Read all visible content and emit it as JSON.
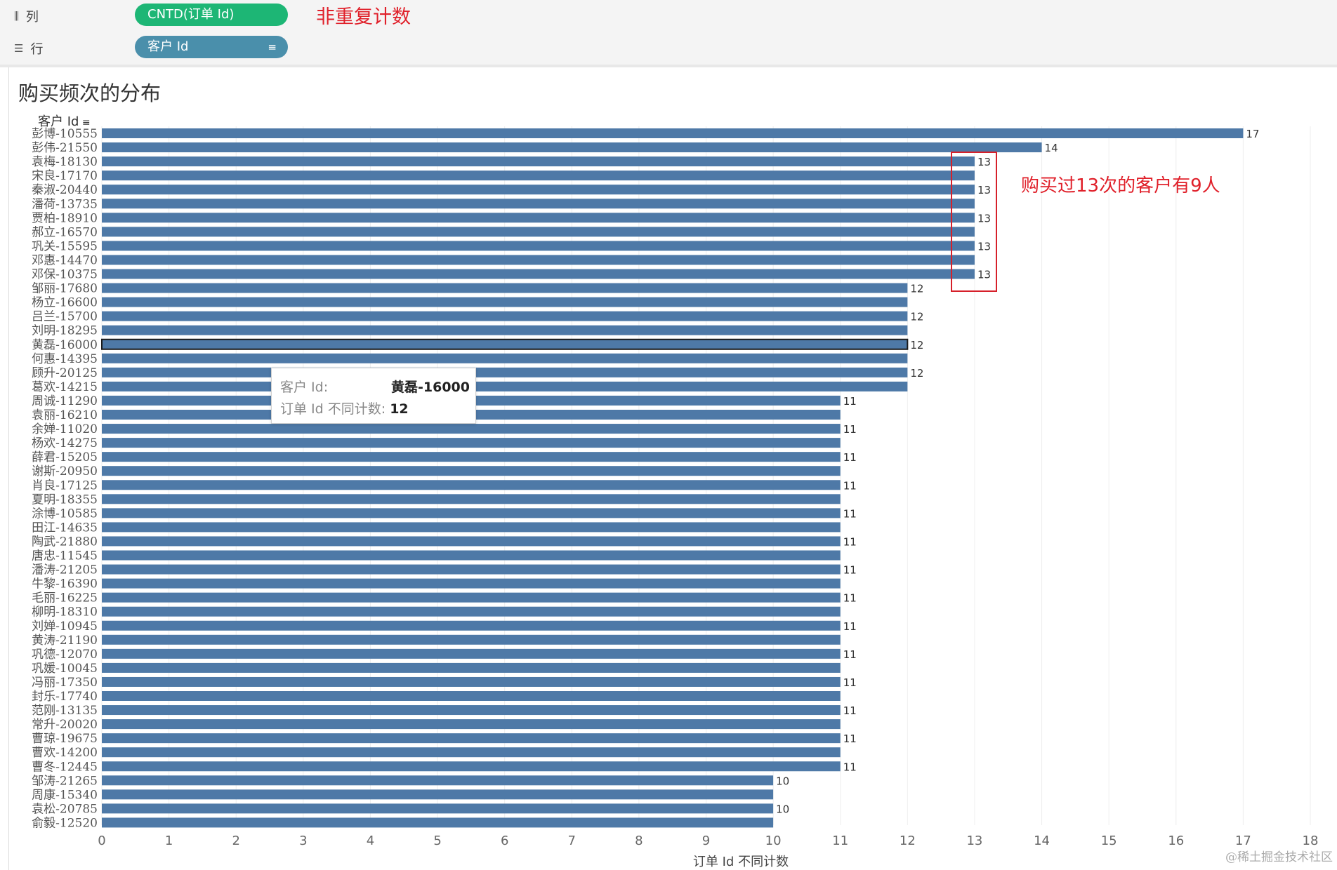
{
  "shelves": {
    "columns": {
      "label": "列",
      "pill": "CNTD(订单 Id)",
      "annotation": "非重复计数"
    },
    "rows": {
      "label": "行",
      "pill": "客户 Id"
    }
  },
  "title": "购买频次的分布",
  "axis_header": "客户 Id",
  "annotation_13": "购买过13次的客户有9人",
  "tooltip": {
    "label_customer": "客户 Id:",
    "value_customer": "黄磊-16000",
    "label_count": "订单 Id 不同计数:",
    "value_count": "12"
  },
  "watermark": "@稀土掘金技术社区",
  "colors": {
    "bar": "#4e79a7",
    "green_pill": "#1db675",
    "blue_pill": "#4a8fab",
    "annotation": "#e0202a"
  },
  "chart_data": {
    "type": "bar",
    "orientation": "horizontal",
    "title": "购买频次的分布",
    "xlabel": "订单 Id 不同计数",
    "ylabel": "客户 Id",
    "xlim": [
      0,
      18
    ],
    "x_ticks": [
      "0",
      "1",
      "2",
      "3",
      "4",
      "5",
      "6",
      "7",
      "8",
      "9",
      "10",
      "11",
      "12",
      "13",
      "14",
      "15",
      "16",
      "17",
      "18"
    ],
    "highlighted": "黄磊-16000",
    "categories": [
      "彭博-10555",
      "彭伟-21550",
      "袁梅-18130",
      "宋良-17170",
      "秦淑-20440",
      "潘荷-13735",
      "贾柏-18910",
      "郝立-16570",
      "巩关-15595",
      "邓惠-14470",
      "邓保-10375",
      "邹丽-17680",
      "杨立-16600",
      "吕兰-15700",
      "刘明-18295",
      "黄磊-16000",
      "何惠-14395",
      "顾升-20125",
      "葛欢-14215",
      "周诚-11290",
      "袁丽-16210",
      "余婵-11020",
      "杨欢-14275",
      "薛君-15205",
      "谢斯-20950",
      "肖良-17125",
      "夏明-18355",
      "涂博-10585",
      "田江-14635",
      "陶武-21880",
      "唐忠-11545",
      "潘涛-21205",
      "牛黎-16390",
      "毛丽-16225",
      "柳明-18310",
      "刘婵-10945",
      "黄涛-21190",
      "巩德-12070",
      "巩媛-10045",
      "冯丽-17350",
      "封乐-17740",
      "范刚-13135",
      "常升-20020",
      "曹琼-19675",
      "曹欢-14200",
      "曹冬-12445",
      "邹涛-21265",
      "周康-15340",
      "袁松-20785",
      "俞毅-12520"
    ],
    "values": [
      17,
      14,
      13,
      13,
      13,
      13,
      13,
      13,
      13,
      13,
      13,
      12,
      12,
      12,
      12,
      12,
      12,
      12,
      12,
      11,
      11,
      11,
      11,
      11,
      11,
      11,
      11,
      11,
      11,
      11,
      11,
      11,
      11,
      11,
      11,
      11,
      11,
      11,
      11,
      11,
      11,
      11,
      11,
      11,
      11,
      11,
      10,
      10,
      10,
      10
    ],
    "labels": [
      "17",
      "14",
      "13",
      "",
      "13",
      "",
      "13",
      "",
      "13",
      "",
      "13",
      "12",
      "",
      "12",
      "",
      "12",
      "",
      "12",
      "",
      "11",
      "",
      "11",
      "",
      "11",
      "",
      "11",
      "",
      "11",
      "",
      "11",
      "",
      "11",
      "",
      "11",
      "",
      "11",
      "",
      "11",
      "",
      "11",
      "",
      "11",
      "",
      "11",
      "",
      "11",
      "10",
      "",
      "10",
      ""
    ]
  }
}
